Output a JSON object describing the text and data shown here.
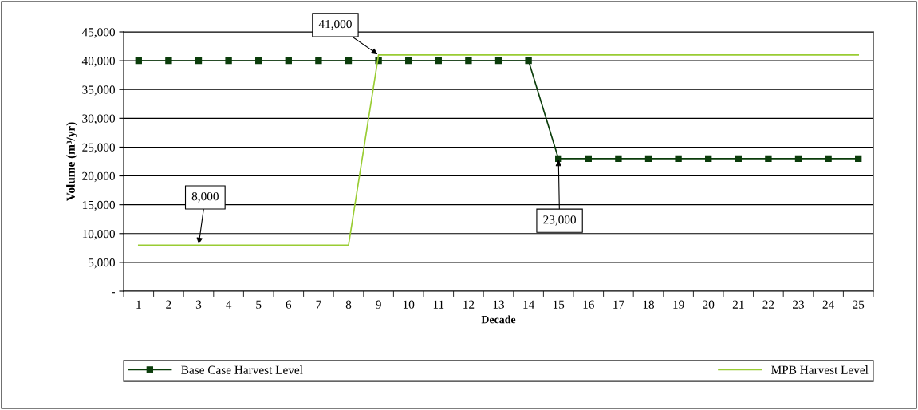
{
  "chart_data": {
    "type": "line",
    "xlabel": "Decade",
    "ylabel": "Volume (m³/yr)",
    "categories": [
      "1",
      "2",
      "3",
      "4",
      "5",
      "6",
      "7",
      "8",
      "9",
      "10",
      "11",
      "12",
      "13",
      "14",
      "15",
      "16",
      "17",
      "18",
      "19",
      "20",
      "21",
      "22",
      "23",
      "24",
      "25"
    ],
    "series": [
      {
        "name": "Base Case Harvest Level",
        "color": "#0b3d0b",
        "marker": "square",
        "values": [
          40000,
          40000,
          40000,
          40000,
          40000,
          40000,
          40000,
          40000,
          40000,
          40000,
          40000,
          40000,
          40000,
          40000,
          23000,
          23000,
          23000,
          23000,
          23000,
          23000,
          23000,
          23000,
          23000,
          23000,
          23000
        ]
      },
      {
        "name": "MPB Harvest Level",
        "color": "#99cc33",
        "marker": "none",
        "values": [
          8000,
          8000,
          8000,
          8000,
          8000,
          8000,
          8000,
          8000,
          41000,
          41000,
          41000,
          41000,
          41000,
          41000,
          41000,
          41000,
          41000,
          41000,
          41000,
          41000,
          41000,
          41000,
          41000,
          41000,
          41000
        ]
      }
    ],
    "ylim": [
      0,
      45000
    ],
    "yticks": [
      {
        "value": 0,
        "label": "-"
      },
      {
        "value": 5000,
        "label": "5,000"
      },
      {
        "value": 10000,
        "label": "10,000"
      },
      {
        "value": 15000,
        "label": "15,000"
      },
      {
        "value": 20000,
        "label": "20,000"
      },
      {
        "value": 25000,
        "label": "25,000"
      },
      {
        "value": 30000,
        "label": "30,000"
      },
      {
        "value": 35000,
        "label": "35,000"
      },
      {
        "value": 40000,
        "label": "40,000"
      },
      {
        "value": 45000,
        "label": "45,000"
      }
    ],
    "grid": "y",
    "legend": "bottom",
    "annotations": [
      {
        "text": "8,000",
        "x": "3",
        "y": 8000
      },
      {
        "text": "41,000",
        "x": "9",
        "y": 41000
      },
      {
        "text": "23,000",
        "x": "15",
        "y": 23000
      }
    ]
  }
}
